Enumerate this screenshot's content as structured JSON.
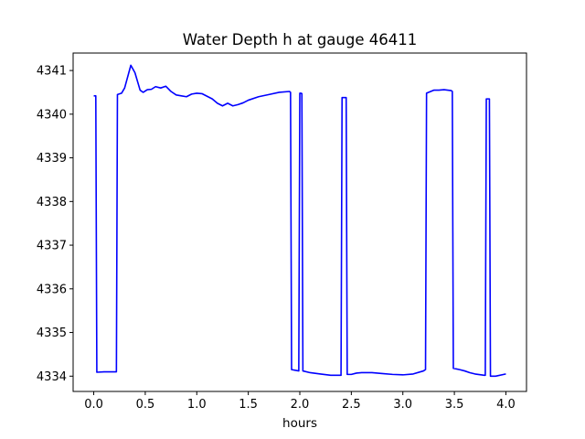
{
  "chart_data": {
    "type": "line",
    "title": "Water Depth h at gauge 46411",
    "xlabel": "hours",
    "ylabel": "",
    "xlim": [
      -0.2,
      4.2
    ],
    "ylim": [
      4333.65,
      4341.4
    ],
    "xticks": [
      0.0,
      0.5,
      1.0,
      1.5,
      2.0,
      2.5,
      3.0,
      3.5,
      4.0
    ],
    "xtick_labels": [
      "0.0",
      "0.5",
      "1.0",
      "1.5",
      "2.0",
      "2.5",
      "3.0",
      "3.5",
      "4.0"
    ],
    "yticks": [
      4334,
      4335,
      4336,
      4337,
      4338,
      4339,
      4340,
      4341
    ],
    "ytick_labels": [
      "4334",
      "4335",
      "4336",
      "4337",
      "4338",
      "4339",
      "4340",
      "4341"
    ],
    "grid": false,
    "legend": "none",
    "series": [
      {
        "color": "#0000ff",
        "x": [
          0.0,
          0.02,
          0.03,
          0.1,
          0.22,
          0.23,
          0.27,
          0.3,
          0.36,
          0.4,
          0.45,
          0.48,
          0.52,
          0.56,
          0.6,
          0.65,
          0.7,
          0.75,
          0.8,
          0.85,
          0.9,
          0.95,
          1.0,
          1.05,
          1.1,
          1.15,
          1.2,
          1.25,
          1.3,
          1.35,
          1.4,
          1.45,
          1.5,
          1.6,
          1.7,
          1.8,
          1.9,
          1.91,
          1.92,
          1.99,
          2.0,
          2.01,
          2.02,
          2.03,
          2.1,
          2.2,
          2.3,
          2.4,
          2.41,
          2.45,
          2.46,
          2.5,
          2.55,
          2.6,
          2.7,
          2.8,
          2.9,
          3.0,
          3.1,
          3.2,
          3.22,
          3.23,
          3.3,
          3.35,
          3.4,
          3.47,
          3.48,
          3.49,
          3.55,
          3.6,
          3.65,
          3.7,
          3.79,
          3.8,
          3.81,
          3.84,
          3.85,
          3.9,
          4.0
        ],
        "y": [
          4340.42,
          4340.42,
          4334.09,
          4334.1,
          4334.1,
          4340.45,
          4340.48,
          4340.6,
          4341.12,
          4340.95,
          4340.55,
          4340.5,
          4340.56,
          4340.57,
          4340.63,
          4340.6,
          4340.64,
          4340.52,
          4340.44,
          4340.42,
          4340.4,
          4340.46,
          4340.48,
          4340.47,
          4340.41,
          4340.35,
          4340.25,
          4340.19,
          4340.25,
          4340.19,
          4340.22,
          4340.26,
          4340.32,
          4340.4,
          4340.45,
          4340.5,
          4340.52,
          4340.5,
          4334.15,
          4334.12,
          4340.48,
          4340.48,
          4340.47,
          4334.12,
          4334.08,
          4334.05,
          4334.02,
          4334.02,
          4340.38,
          4340.38,
          4334.04,
          4334.04,
          4334.07,
          4334.08,
          4334.08,
          4334.06,
          4334.04,
          4334.03,
          4334.05,
          4334.12,
          4334.15,
          4340.48,
          4340.55,
          4340.55,
          4340.56,
          4340.54,
          4340.52,
          4334.18,
          4334.15,
          4334.12,
          4334.08,
          4334.05,
          4334.02,
          4334.02,
          4340.35,
          4340.35,
          4334.0,
          4334.0,
          4334.05
        ]
      }
    ]
  }
}
